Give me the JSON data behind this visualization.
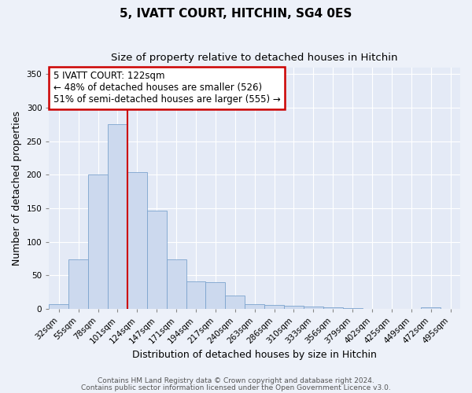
{
  "title": "5, IVATT COURT, HITCHIN, SG4 0ES",
  "subtitle": "Size of property relative to detached houses in Hitchin",
  "xlabel": "Distribution of detached houses by size in Hitchin",
  "ylabel": "Number of detached properties",
  "bar_labels": [
    "32sqm",
    "55sqm",
    "78sqm",
    "101sqm",
    "124sqm",
    "147sqm",
    "171sqm",
    "194sqm",
    "217sqm",
    "240sqm",
    "263sqm",
    "286sqm",
    "310sqm",
    "333sqm",
    "356sqm",
    "379sqm",
    "402sqm",
    "425sqm",
    "449sqm",
    "472sqm",
    "495sqm"
  ],
  "bar_values": [
    7,
    74,
    200,
    275,
    204,
    146,
    74,
    41,
    40,
    20,
    7,
    6,
    5,
    3,
    2,
    1,
    0,
    0,
    0,
    2,
    0
  ],
  "bar_width": 1.0,
  "bar_color": "#ccd9ee",
  "bar_edgecolor": "#7ca3ce",
  "vline_x_idx": 3,
  "vline_color": "#cc0000",
  "annotation_title": "5 IVATT COURT: 122sqm",
  "annotation_line1": "← 48% of detached houses are smaller (526)",
  "annotation_line2": "51% of semi-detached houses are larger (555) →",
  "annotation_box_edgecolor": "#cc0000",
  "annotation_box_facecolor": "#ffffff",
  "ylim": [
    0,
    360
  ],
  "yticks": [
    0,
    50,
    100,
    150,
    200,
    250,
    300,
    350
  ],
  "footer1": "Contains HM Land Registry data © Crown copyright and database right 2024.",
  "footer2": "Contains public sector information licensed under the Open Government Licence v3.0.",
  "bg_color": "#edf1f9",
  "plot_bg_color": "#e4eaf6",
  "grid_color": "#ffffff",
  "title_fontsize": 11,
  "subtitle_fontsize": 9.5,
  "axis_label_fontsize": 9,
  "tick_fontsize": 7.5,
  "annotation_fontsize": 8.5,
  "footer_fontsize": 6.5
}
